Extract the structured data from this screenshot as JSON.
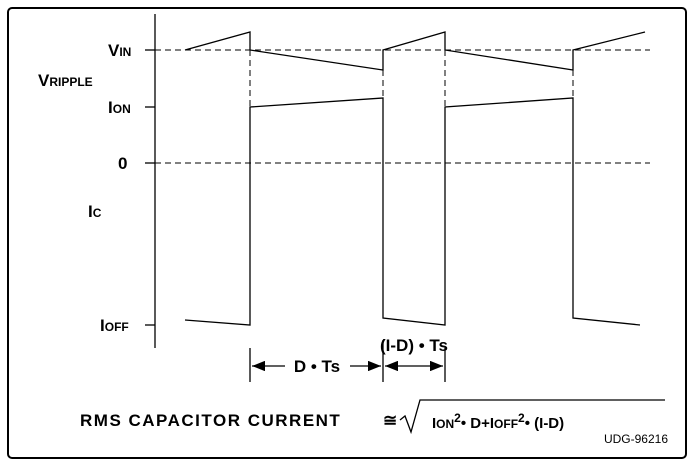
{
  "labels": {
    "vin": [
      "V",
      "IN"
    ],
    "vripple": [
      "V",
      "RIPPLE"
    ],
    "ion": [
      "I",
      "ON"
    ],
    "zero": "0",
    "ic": [
      "I",
      "C"
    ],
    "ioff": [
      "I",
      "OFF"
    ]
  },
  "dimensions": {
    "on_time": "D • Ts",
    "off_time": "(I-D) • Ts"
  },
  "formula": {
    "lhs": "RMS CAPACITOR CURRENT",
    "approx": "≅",
    "parts": [
      "I",
      "ON",
      "2",
      "• D+I",
      "OFF",
      "2",
      "• (I-D)"
    ]
  },
  "figure_id": "UDG-96216"
}
